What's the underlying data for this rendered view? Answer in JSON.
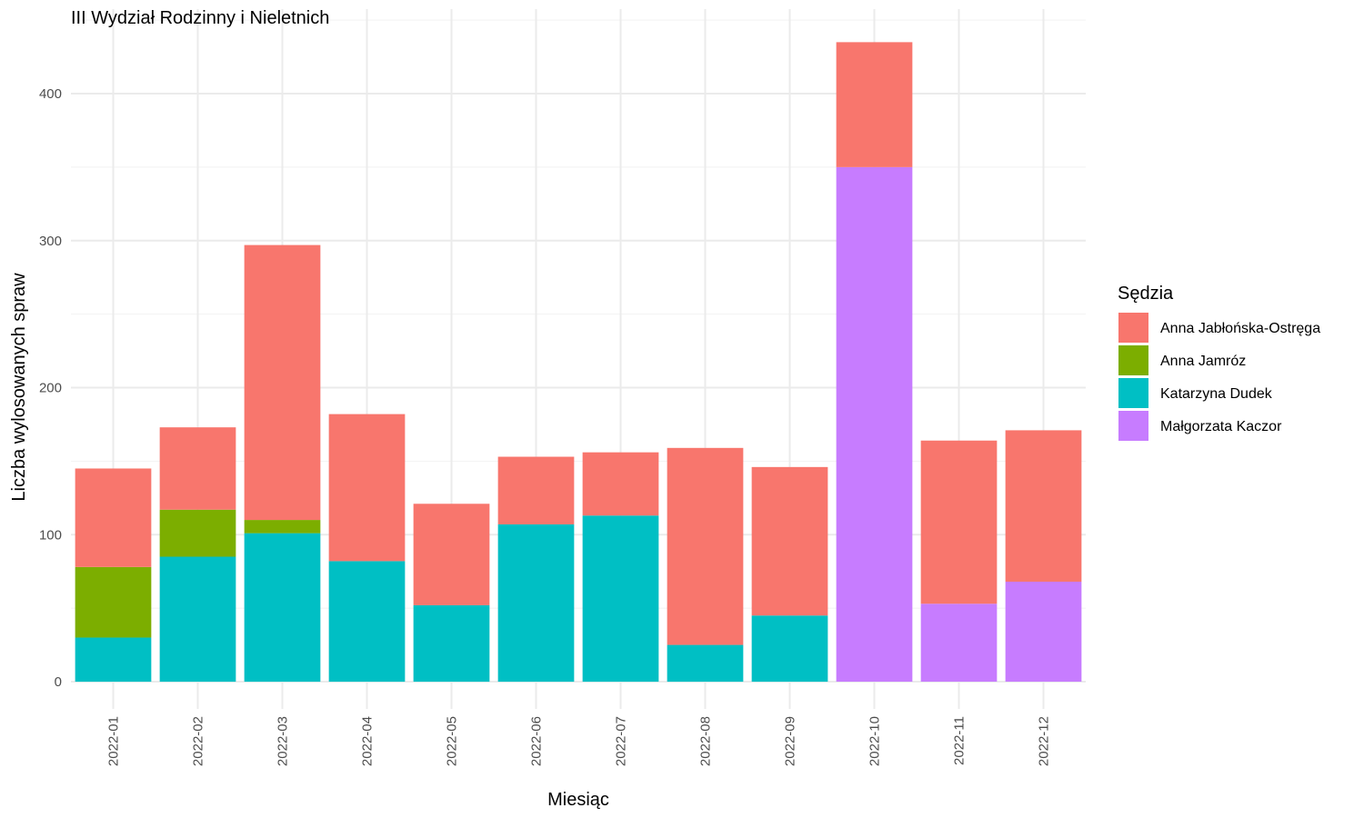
{
  "chart_data": {
    "type": "bar",
    "stacked": true,
    "title": "III Wydział Rodzinny i Nieletnich",
    "xlabel": "Miesiąc",
    "ylabel": "Liczba wylosowanych spraw",
    "ylim": [
      0,
      435
    ],
    "yticks": [
      0,
      100,
      200,
      300,
      400
    ],
    "grid": true,
    "legend": {
      "title": "Sędzia",
      "position": "right"
    },
    "categories": [
      "2022-01",
      "2022-02",
      "2022-03",
      "2022-04",
      "2022-05",
      "2022-06",
      "2022-07",
      "2022-08",
      "2022-09",
      "2022-10",
      "2022-11",
      "2022-12"
    ],
    "series": [
      {
        "name": "Małgorzata Kaczor",
        "color": "#C77CFF",
        "values": [
          0,
          0,
          0,
          0,
          0,
          0,
          0,
          0,
          0,
          350,
          53,
          68
        ]
      },
      {
        "name": "Katarzyna Dudek",
        "color": "#00BFC4",
        "values": [
          30,
          85,
          101,
          82,
          52,
          107,
          113,
          25,
          45,
          0,
          0,
          0
        ]
      },
      {
        "name": "Anna Jamróz",
        "color": "#7CAE00",
        "values": [
          48,
          32,
          9,
          0,
          0,
          0,
          0,
          0,
          0,
          0,
          0,
          0
        ]
      },
      {
        "name": "Anna Jabłońska-Ostręga",
        "color": "#F8766D",
        "values": [
          67,
          56,
          187,
          100,
          69,
          46,
          43,
          134,
          101,
          85,
          111,
          103
        ]
      }
    ],
    "legend_order": [
      "Anna Jabłońska-Ostręga",
      "Anna Jamróz",
      "Katarzyna Dudek",
      "Małgorzata Kaczor"
    ]
  }
}
